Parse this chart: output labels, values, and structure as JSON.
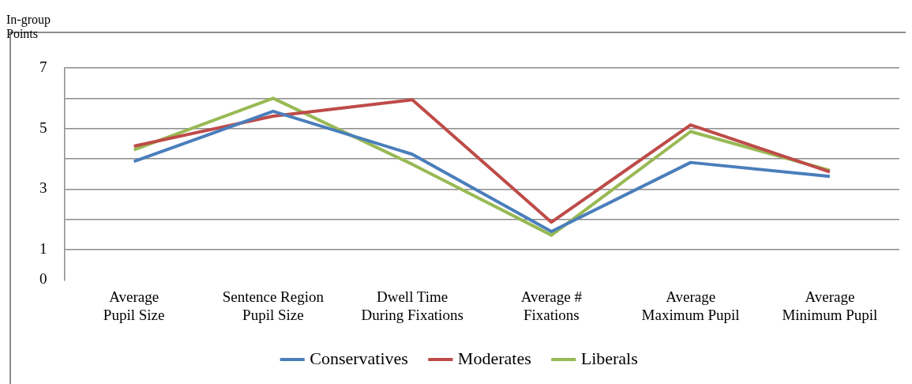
{
  "chart_data": {
    "type": "line",
    "ylabel": "In-group Points",
    "categories": [
      "Average Pupil Size",
      "Sentence Region Pupil Size",
      "Dwell Time During Fixations",
      "Average # Fixations",
      "Average Maximum Pupil",
      "Average Minimum Pupil"
    ],
    "series": [
      {
        "name": "Conservatives",
        "color": "#4a7ebb",
        "values": [
          3.91,
          5.57,
          4.15,
          1.6,
          3.88,
          3.42
        ]
      },
      {
        "name": "Moderates",
        "color": "#be4b48",
        "values": [
          4.42,
          5.41,
          5.95,
          1.91,
          5.12,
          3.57
        ]
      },
      {
        "name": "Liberals",
        "color": "#98b954",
        "values": [
          4.3,
          6.0,
          3.82,
          1.48,
          4.9,
          3.62
        ]
      }
    ],
    "ylim": [
      0,
      7
    ],
    "yticks": [
      0,
      1,
      {
        "value": 2,
        "label": null
      },
      3,
      {
        "value": 4,
        "label": null
      },
      5,
      {
        "value": 6,
        "label": null
      },
      7
    ],
    "grid": "y",
    "legend": "bottom",
    "marker": "none",
    "line_style": "solid"
  }
}
